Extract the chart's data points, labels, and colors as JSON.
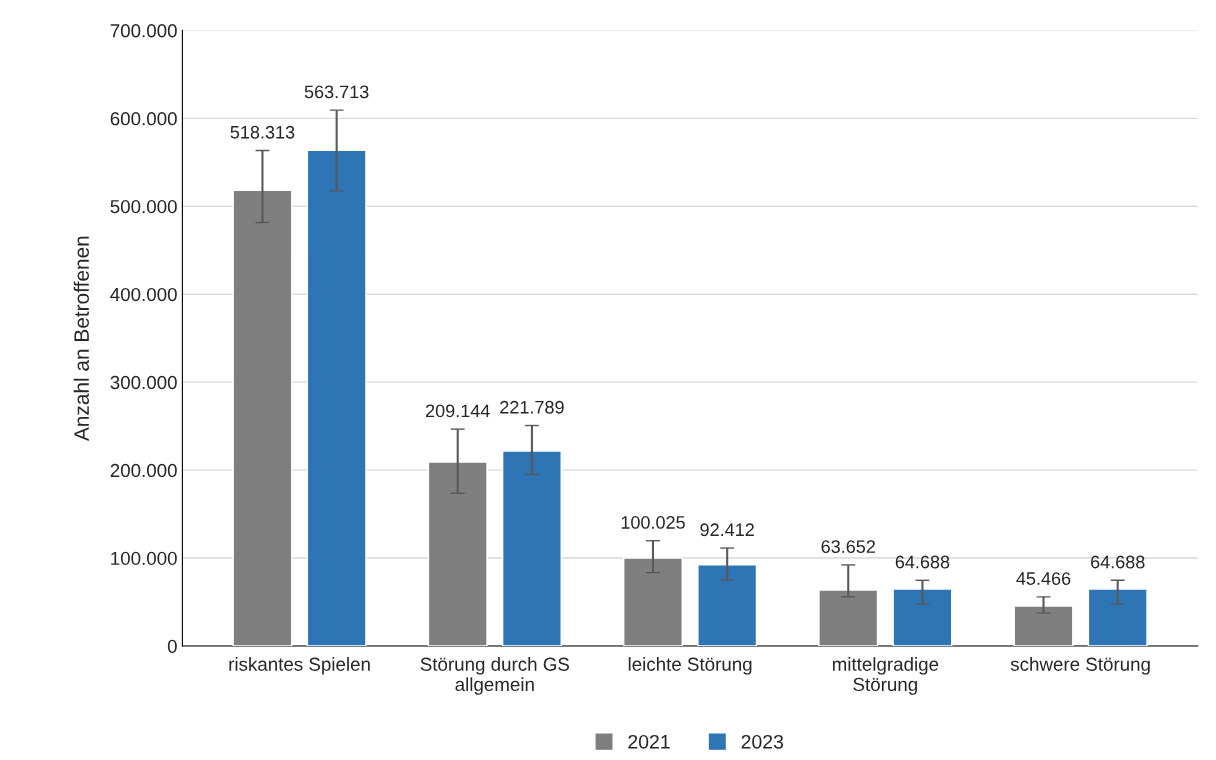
{
  "chart_data": {
    "type": "bar",
    "ylabel": "Anzahl an Betroffenen",
    "categories": [
      "riskantes Spielen",
      "Störung durch GS\nallgemein",
      "leichte Störung",
      "mittelgradige\nStörung",
      "schwere Störung"
    ],
    "series": [
      {
        "name": "2021",
        "color": "#7f7f7f",
        "values": [
          518313,
          209144,
          100025,
          63652,
          45466
        ],
        "value_labels": [
          "518.313",
          "209.144",
          "100.025",
          "63.652",
          "45.466"
        ],
        "errors": [
          [
            481500,
            563400
          ],
          [
            173800,
            246600
          ],
          [
            83400,
            119700
          ],
          [
            55900,
            92200
          ],
          [
            37400,
            55900
          ]
        ]
      },
      {
        "name": "2023",
        "color": "#2e75b6",
        "values": [
          563713,
          221789,
          92412,
          64688,
          64688
        ],
        "value_labels": [
          "563.713",
          "221.789",
          "92.412",
          "64.688",
          "64.688"
        ],
        "errors": [
          [
            517500,
            609300
          ],
          [
            195000,
            250700
          ],
          [
            74700,
            111400
          ],
          [
            47600,
            74700
          ],
          [
            47600,
            74700
          ]
        ]
      }
    ],
    "ylim": [
      0,
      700000
    ],
    "yticks": [
      {
        "value": 0,
        "label": "0"
      },
      {
        "value": 100000,
        "label": "100.000"
      },
      {
        "value": 200000,
        "label": "200.000"
      },
      {
        "value": 300000,
        "label": "300.000"
      },
      {
        "value": 400000,
        "label": "400.000"
      },
      {
        "value": 500000,
        "label": "500.000"
      },
      {
        "value": 600000,
        "label": "600.000"
      },
      {
        "value": 700000,
        "label": "700.000"
      }
    ],
    "grid": "y",
    "legend": "bottom"
  }
}
